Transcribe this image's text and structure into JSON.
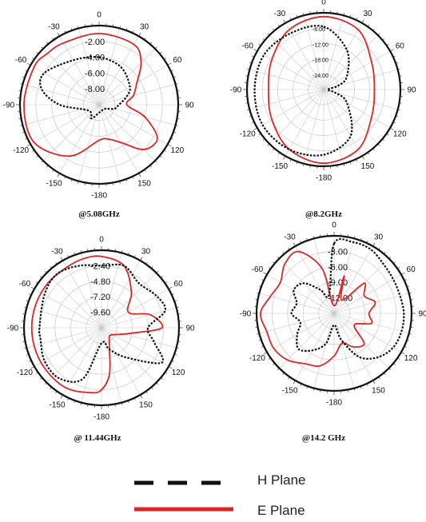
{
  "colors": {
    "e_plane": "#e02525",
    "h_plane": "#111111",
    "grid": "#c8c8c8",
    "outer_ring": "#111111"
  },
  "legend": [
    {
      "label": "H Plane",
      "style": "dashed",
      "color": "#111111"
    },
    {
      "label": "E Plane",
      "style": "solid",
      "color": "#e02525"
    }
  ],
  "chart_data": [
    {
      "type": "polar",
      "caption": "@5.08GHz",
      "angle_ticks": [
        "0",
        "30",
        "60",
        "90",
        "120",
        "150",
        "-180",
        "-150",
        "-120",
        "-90",
        "-60",
        "-30"
      ],
      "radial_labels": [
        "-2.00",
        "-4.00",
        "-6.00",
        "-8.00"
      ],
      "series": [
        {
          "name": "E Plane",
          "theta_deg": [
            0,
            30,
            45,
            60,
            75,
            90,
            105,
            120,
            135,
            150,
            165,
            180,
            -150,
            -120,
            -90,
            -60,
            -45,
            -30
          ],
          "r_norm": [
            0.9,
            0.88,
            0.75,
            0.55,
            0.45,
            0.35,
            0.6,
            0.85,
            0.8,
            0.55,
            0.45,
            0.45,
            0.75,
            0.95,
            0.95,
            0.95,
            0.92,
            0.9
          ]
        },
        {
          "name": "H Plane",
          "theta_deg": [
            0,
            30,
            60,
            75,
            90,
            105,
            120,
            150,
            180,
            -150,
            -120,
            -90,
            -75,
            -60,
            -30
          ],
          "r_norm": [
            0.6,
            0.55,
            0.45,
            0.35,
            0.25,
            0.2,
            0.1,
            0.08,
            0.1,
            0.2,
            0.15,
            0.5,
            0.75,
            0.8,
            0.65
          ]
        }
      ]
    },
    {
      "type": "polar",
      "caption": "@8.2GHz",
      "angle_ticks": [
        "0",
        "30",
        "60",
        "90",
        "120",
        "150",
        "-180",
        "-150",
        "-120",
        "-90",
        "-60",
        "-30"
      ],
      "radial_labels": [
        "-6.00",
        "-12.00",
        "-18.00",
        "-24.00"
      ],
      "series": [
        {
          "name": "E Plane",
          "theta_deg": [
            0,
            30,
            60,
            90,
            120,
            150,
            180,
            -150,
            -120,
            -90,
            -60,
            -30
          ],
          "r_norm": [
            0.95,
            0.9,
            0.72,
            0.66,
            0.72,
            0.9,
            0.96,
            0.9,
            0.78,
            0.72,
            0.78,
            0.9
          ]
        },
        {
          "name": "H Plane",
          "theta_deg": [
            0,
            30,
            60,
            75,
            90,
            105,
            120,
            150,
            180,
            -150,
            -120,
            -90,
            -60,
            -30
          ],
          "r_norm": [
            0.82,
            0.6,
            0.35,
            0.2,
            0.05,
            0.15,
            0.35,
            0.7,
            0.85,
            0.9,
            0.92,
            0.9,
            0.9,
            0.85
          ]
        }
      ]
    },
    {
      "type": "polar",
      "caption": "@ 11.44GHz",
      "angle_ticks": [
        "0",
        "30",
        "60",
        "90",
        "120",
        "150",
        "-180",
        "-150",
        "-120",
        "-90",
        "-60",
        "-30"
      ],
      "radial_labels": [
        "-2.40",
        "-4.80",
        "-7.20",
        "-9.60"
      ],
      "series": [
        {
          "name": "E Plane",
          "theta_deg": [
            0,
            20,
            40,
            60,
            75,
            90,
            100,
            110,
            130,
            150,
            170,
            180,
            -170,
            -150,
            -130,
            -110,
            -90,
            -70,
            -50,
            -30,
            -15
          ],
          "r_norm": [
            0.92,
            0.85,
            0.6,
            0.4,
            0.65,
            0.78,
            0.4,
            0.25,
            0.15,
            0.2,
            0.6,
            0.8,
            0.85,
            0.9,
            0.9,
            0.9,
            0.9,
            0.9,
            0.9,
            0.9,
            0.92
          ]
        },
        {
          "name": "H Plane",
          "theta_deg": [
            0,
            20,
            40,
            60,
            75,
            90,
            105,
            120,
            140,
            160,
            180,
            -160,
            -140,
            -120,
            -100,
            -90,
            -60,
            -40,
            -20
          ],
          "r_norm": [
            0.8,
            0.85,
            0.75,
            0.82,
            0.85,
            0.6,
            0.7,
            0.9,
            0.5,
            0.3,
            0.2,
            0.7,
            0.85,
            0.85,
            0.8,
            0.8,
            0.85,
            0.9,
            0.85
          ]
        }
      ]
    },
    {
      "type": "polar",
      "caption": "@14.2 GHz",
      "angle_ticks": [
        "0",
        "30",
        "60",
        "90",
        "120",
        "150",
        "-180",
        "-150",
        "-120",
        "-90",
        "-60",
        "-30"
      ],
      "radial_labels": [
        "-3.00",
        "-6.00",
        "-9.00",
        "-12.00"
      ],
      "series": [
        {
          "name": "E Plane",
          "theta_deg": [
            0,
            15,
            30,
            45,
            60,
            75,
            90,
            105,
            120,
            135,
            150,
            165,
            180,
            -165,
            -150,
            -135,
            -120,
            -105,
            -90,
            -75,
            -60,
            -45,
            -30,
            -15
          ],
          "r_norm": [
            0.1,
            0.5,
            0.2,
            0.55,
            0.45,
            0.55,
            0.45,
            0.5,
            0.3,
            0.55,
            0.5,
            0.4,
            0.55,
            0.7,
            0.75,
            0.85,
            0.9,
            0.9,
            0.95,
            0.85,
            0.8,
            0.9,
            0.92,
            0.6
          ]
        },
        {
          "name": "H Plane",
          "theta_deg": [
            0,
            15,
            30,
            45,
            60,
            75,
            90,
            105,
            120,
            135,
            150,
            165,
            180,
            -165,
            -150,
            -135,
            -120,
            -105,
            -90,
            -75,
            -60,
            -45,
            -30,
            -15
          ],
          "r_norm": [
            0.9,
            0.95,
            0.95,
            0.9,
            0.88,
            0.88,
            0.9,
            0.9,
            0.88,
            0.8,
            0.65,
            0.35,
            0.15,
            0.4,
            0.55,
            0.65,
            0.55,
            0.45,
            0.55,
            0.5,
            0.6,
            0.55,
            0.35,
            0.25
          ]
        }
      ]
    }
  ]
}
